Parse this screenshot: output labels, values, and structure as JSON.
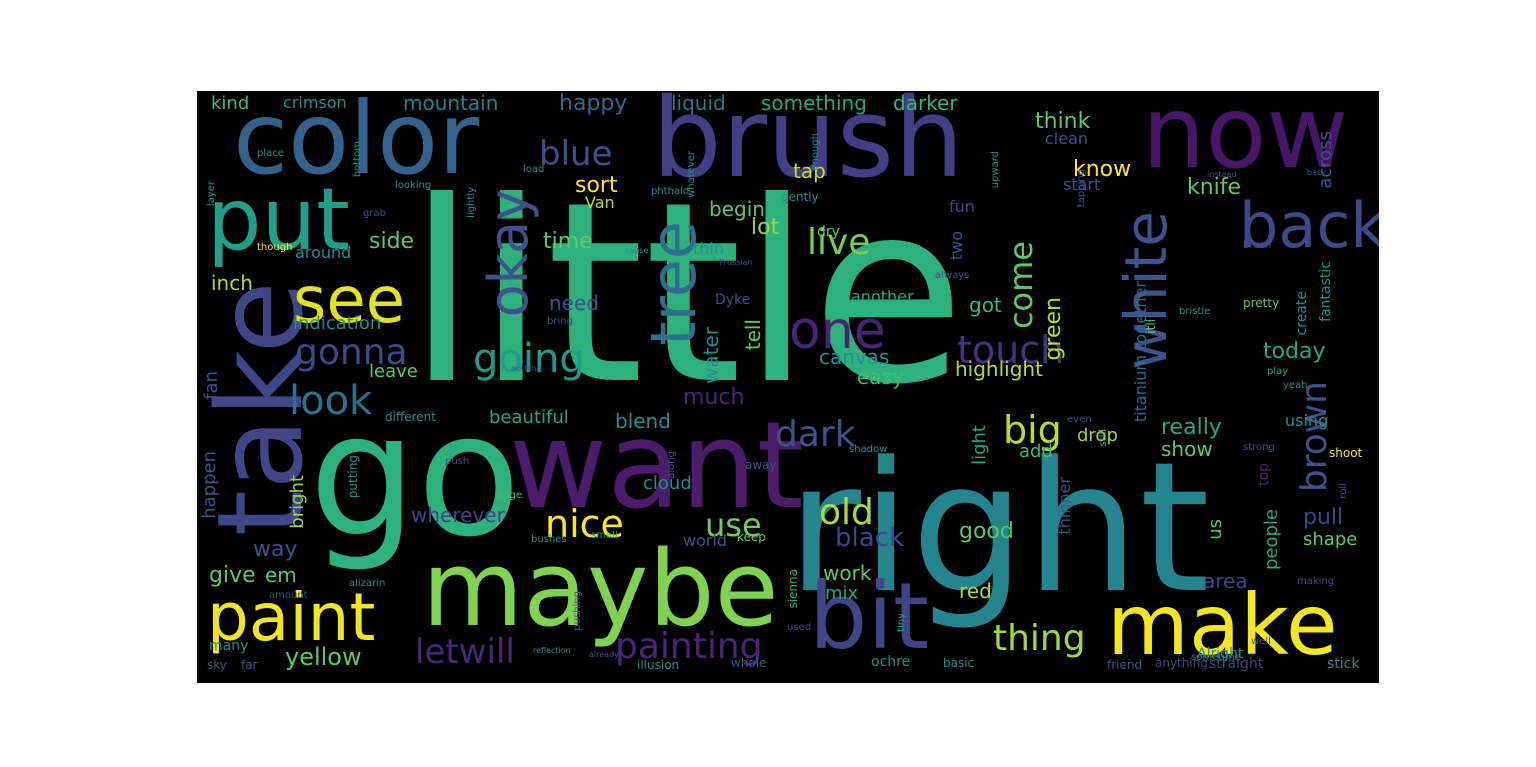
{
  "wordcloud": {
    "background": "#000000",
    "palette": [
      "#440154",
      "#3b528b",
      "#21918c",
      "#27ad81",
      "#5ec962",
      "#fde725"
    ],
    "words": [
      {
        "text": "little",
        "color": "#2db27d"
      },
      {
        "text": "right",
        "color": "#25858e"
      },
      {
        "text": "go",
        "color": "#2db27d"
      },
      {
        "text": "want",
        "color": "#4a1c6b"
      },
      {
        "text": "maybe",
        "color": "#7fd34e"
      },
      {
        "text": "brush",
        "color": "#433e85"
      },
      {
        "text": "color",
        "color": "#33638d"
      },
      {
        "text": "now",
        "color": "#481668"
      },
      {
        "text": "take",
        "color": "#3f4788"
      },
      {
        "text": "put",
        "color": "#1fa187"
      },
      {
        "text": "make",
        "color": "#f5e61e"
      },
      {
        "text": "bit",
        "color": "#414487"
      },
      {
        "text": "paint",
        "color": "#f1e51d"
      },
      {
        "text": "back",
        "color": "#3f4889"
      },
      {
        "text": "see",
        "color": "#e3e418"
      },
      {
        "text": "okay",
        "color": "#3b528b"
      },
      {
        "text": "tree",
        "color": "#2e6f8e"
      },
      {
        "text": "white",
        "color": "#39558c"
      },
      {
        "text": "one",
        "color": "#482475"
      },
      {
        "text": "nice",
        "color": "#fde725"
      },
      {
        "text": "going",
        "color": "#1e9c89"
      },
      {
        "text": "gonna",
        "color": "#3e4989"
      },
      {
        "text": "look",
        "color": "#2c728e"
      },
      {
        "text": "blue",
        "color": "#3b528b"
      },
      {
        "text": "live",
        "color": "#74d055"
      },
      {
        "text": "come",
        "color": "#5ec962"
      },
      {
        "text": "touch",
        "color": "#46327e"
      },
      {
        "text": "old",
        "color": "#addc30"
      },
      {
        "text": "dark",
        "color": "#3b528b"
      },
      {
        "text": "big",
        "color": "#b8de29"
      },
      {
        "text": "use",
        "color": "#6ece58"
      },
      {
        "text": "letwill",
        "color": "#482878"
      },
      {
        "text": "painting",
        "color": "#482575"
      },
      {
        "text": "thing",
        "color": "#a0da39"
      },
      {
        "text": "brown",
        "color": "#3b528b"
      },
      {
        "text": "yellow",
        "color": "#5ec962"
      },
      {
        "text": "black",
        "color": "#414487"
      },
      {
        "text": "happy",
        "color": "#31688e"
      },
      {
        "text": "mountain",
        "color": "#26828e"
      },
      {
        "text": "liquid",
        "color": "#2a788e"
      },
      {
        "text": "something",
        "color": "#22a884"
      },
      {
        "text": "darker",
        "color": "#35b779"
      },
      {
        "text": "kind",
        "color": "#3fbc73"
      },
      {
        "text": "crimson",
        "color": "#21918c"
      },
      {
        "text": "think",
        "color": "#5ec962"
      },
      {
        "text": "know",
        "color": "#fde725"
      },
      {
        "text": "sort",
        "color": "#fde725"
      },
      {
        "text": "tap",
        "color": "#c8e020"
      },
      {
        "text": "start",
        "color": "#3b528b"
      },
      {
        "text": "knife",
        "color": "#5ec962"
      },
      {
        "text": "across",
        "color": "#3b528b"
      },
      {
        "text": "begin",
        "color": "#5ec962"
      },
      {
        "text": "lot",
        "color": "#95d840"
      },
      {
        "text": "time",
        "color": "#5ec962"
      },
      {
        "text": "side",
        "color": "#5ec962"
      },
      {
        "text": "inch",
        "color": "#addc30"
      },
      {
        "text": "around",
        "color": "#21918c"
      },
      {
        "text": "indication",
        "color": "#21918c"
      },
      {
        "text": "need",
        "color": "#3b528b"
      },
      {
        "text": "water",
        "color": "#21918c"
      },
      {
        "text": "tell",
        "color": "#5ec962"
      },
      {
        "text": "canvas",
        "color": "#21918c"
      },
      {
        "text": "easy",
        "color": "#3fbc73"
      },
      {
        "text": "today",
        "color": "#22a884"
      },
      {
        "text": "highlight",
        "color": "#b8de29"
      },
      {
        "text": "got",
        "color": "#35b779"
      },
      {
        "text": "green",
        "color": "#addc30"
      },
      {
        "text": "fantastic",
        "color": "#21918c"
      },
      {
        "text": "create",
        "color": "#21918c"
      },
      {
        "text": "titanium together",
        "color": "#31688e"
      },
      {
        "text": "really",
        "color": "#22a884"
      },
      {
        "text": "show",
        "color": "#5ec962"
      },
      {
        "text": "drop",
        "color": "#95d840"
      },
      {
        "text": "add",
        "color": "#3fbc73"
      },
      {
        "text": "light",
        "color": "#22a884"
      },
      {
        "text": "beautiful",
        "color": "#22a884"
      },
      {
        "text": "blend",
        "color": "#21918c"
      },
      {
        "text": "much",
        "color": "#482878"
      },
      {
        "text": "leave",
        "color": "#5ec962"
      },
      {
        "text": "fan",
        "color": "#3b528b"
      },
      {
        "text": "happen",
        "color": "#3b528b"
      },
      {
        "text": "bright",
        "color": "#95d840"
      },
      {
        "text": "way",
        "color": "#3b528b"
      },
      {
        "text": "give",
        "color": "#5ec962"
      },
      {
        "text": "em",
        "color": "#5ec962"
      },
      {
        "text": "wherever",
        "color": "#414487"
      },
      {
        "text": "cloud",
        "color": "#21918c"
      },
      {
        "text": "world",
        "color": "#3b528b"
      },
      {
        "text": "work",
        "color": "#5ec962"
      },
      {
        "text": "mix",
        "color": "#22a884"
      },
      {
        "text": "red",
        "color": "#addc30"
      },
      {
        "text": "good",
        "color": "#5ec962"
      },
      {
        "text": "pull",
        "color": "#414487"
      },
      {
        "text": "shape",
        "color": "#5ec962"
      },
      {
        "text": "area",
        "color": "#414487"
      },
      {
        "text": "people",
        "color": "#22a884"
      },
      {
        "text": "us",
        "color": "#5ec962"
      },
      {
        "text": "using",
        "color": "#21918c"
      },
      {
        "text": "thinner",
        "color": "#3b528b"
      },
      {
        "text": "another",
        "color": "#22a884"
      },
      {
        "text": "two",
        "color": "#3b528b"
      },
      {
        "text": "fun",
        "color": "#414487"
      },
      {
        "text": "gently",
        "color": "#21918c"
      },
      {
        "text": "dry",
        "color": "#5ec962"
      },
      {
        "text": "thin",
        "color": "#21918c"
      },
      {
        "text": "clean",
        "color": "#3b528b"
      },
      {
        "text": "Van",
        "color": "#b8de29"
      },
      {
        "text": "Dyke",
        "color": "#3b528b"
      },
      {
        "text": "Alright",
        "color": "#21918c"
      },
      {
        "text": "straight",
        "color": "#414487"
      },
      {
        "text": "anything",
        "color": "#414487"
      },
      {
        "text": "friend",
        "color": "#3b528b"
      },
      {
        "text": "basic",
        "color": "#21918c"
      },
      {
        "text": "ochre",
        "color": "#21918c"
      },
      {
        "text": "whole",
        "color": "#3b528b"
      },
      {
        "text": "illusion",
        "color": "#21918c"
      },
      {
        "text": "stick",
        "color": "#21918c"
      },
      {
        "text": "small",
        "color": "#22a884"
      },
      {
        "text": "keep",
        "color": "#5ec962"
      },
      {
        "text": "shoot",
        "color": "#fde725"
      },
      {
        "text": "top",
        "color": "#482878"
      },
      {
        "text": "edge",
        "color": "#3fbc73"
      },
      {
        "text": "bushes",
        "color": "#21918c"
      },
      {
        "text": "sienna",
        "color": "#22a884"
      },
      {
        "text": "tiny",
        "color": "#22a884"
      },
      {
        "text": "many",
        "color": "#21918c"
      },
      {
        "text": "far",
        "color": "#3b528b"
      },
      {
        "text": "sky",
        "color": "#3b528b"
      },
      {
        "text": "different",
        "color": "#21918c"
      },
      {
        "text": "always",
        "color": "#3b528b"
      },
      {
        "text": "still",
        "color": "#5ec962"
      },
      {
        "text": "even",
        "color": "#3b528b"
      },
      {
        "text": "pretty",
        "color": "#5ec962"
      },
      {
        "text": "play",
        "color": "#22a884"
      },
      {
        "text": "bring",
        "color": "#3b528b"
      },
      {
        "text": "grab",
        "color": "#3b528b"
      },
      {
        "text": "though",
        "color": "#fde725"
      },
      {
        "text": "layer",
        "color": "#21918c"
      },
      {
        "text": "place",
        "color": "#21918c"
      },
      {
        "text": "looking",
        "color": "#21918c"
      },
      {
        "text": "lightly",
        "color": "#21918c"
      },
      {
        "text": "phthalo",
        "color": "#21918c"
      },
      {
        "text": "whatever",
        "color": "#21918c"
      },
      {
        "text": "enough",
        "color": "#21918c"
      },
      {
        "text": "tapping",
        "color": "#3b528b"
      },
      {
        "text": "bottom",
        "color": "#21918c"
      },
      {
        "text": "load",
        "color": "#21918c"
      },
      {
        "text": "pushing",
        "color": "#3b528b"
      },
      {
        "text": "reflection",
        "color": "#21918c"
      },
      {
        "text": "already",
        "color": "#3b528b"
      },
      {
        "text": "amount",
        "color": "#3b528b"
      },
      {
        "text": "alizarin",
        "color": "#21918c"
      },
      {
        "text": "making",
        "color": "#3b528b"
      },
      {
        "text": "roll",
        "color": "#3b528b"
      },
      {
        "text": "well",
        "color": "#3b528b"
      },
      {
        "text": "used",
        "color": "#3b528b"
      },
      {
        "text": "sometime",
        "color": "#21918c"
      },
      {
        "text": "along",
        "color": "#3b528b"
      },
      {
        "text": "away",
        "color": "#3b528b"
      },
      {
        "text": "shadow",
        "color": "#21918c"
      },
      {
        "text": "strong",
        "color": "#3b528b"
      },
      {
        "text": "push",
        "color": "#3b528b"
      },
      {
        "text": "putting",
        "color": "#21918c"
      },
      {
        "text": "yeah",
        "color": "#21918c"
      },
      {
        "text": "itll",
        "color": "#5ec962"
      },
      {
        "text": "bristle",
        "color": "#21918c"
      },
      {
        "text": "brush2",
        "color": "#3b528b"
      },
      {
        "text": "Prussian",
        "color": "#3b528b"
      },
      {
        "text": "cause",
        "color": "#21918c"
      },
      {
        "text": "nothing",
        "color": "#3b528b"
      },
      {
        "text": "back2",
        "color": "#3b528b"
      },
      {
        "text": "upward",
        "color": "#21918c"
      },
      {
        "text": "instead",
        "color": "#3b528b"
      }
    ]
  }
}
